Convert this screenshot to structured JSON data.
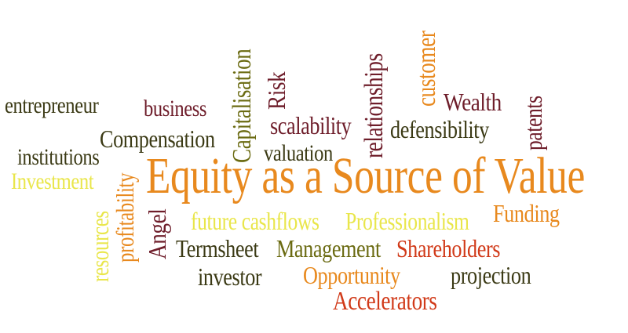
{
  "word_cloud": {
    "words": [
      {
        "text": "Equity as a Source of Value",
        "color": "#e8891e"
      },
      {
        "text": "entrepreneur",
        "color": "#3b3a15"
      },
      {
        "text": "business",
        "color": "#6e1d2a"
      },
      {
        "text": "Compensation",
        "color": "#3b3a15"
      },
      {
        "text": "institutions",
        "color": "#3b3a15"
      },
      {
        "text": "Investment",
        "color": "#e9e64a"
      },
      {
        "text": "Capitalisation",
        "color": "#6b6b12"
      },
      {
        "text": "Risk",
        "color": "#6e1d2a"
      },
      {
        "text": "scalability",
        "color": "#6e1d2a"
      },
      {
        "text": "valuation",
        "color": "#3b3a15"
      },
      {
        "text": "relationships",
        "color": "#6e1d2a"
      },
      {
        "text": "customer",
        "color": "#e8891e"
      },
      {
        "text": "defensibility",
        "color": "#3b3a15"
      },
      {
        "text": "Wealth",
        "color": "#6e1d2a"
      },
      {
        "text": "patents",
        "color": "#6e1d2a"
      },
      {
        "text": "resources",
        "color": "#e9e64a"
      },
      {
        "text": "profitability",
        "color": "#e8891e"
      },
      {
        "text": "Angel",
        "color": "#6e1d2a"
      },
      {
        "text": "future cashflows",
        "color": "#e9e64a"
      },
      {
        "text": "Professionalism",
        "color": "#e9e64a"
      },
      {
        "text": "Funding",
        "color": "#e8891e"
      },
      {
        "text": "Termsheet",
        "color": "#3b3a15"
      },
      {
        "text": "Management",
        "color": "#6b6b12"
      },
      {
        "text": "Shareholders",
        "color": "#d13a19"
      },
      {
        "text": "investor",
        "color": "#3b3a15"
      },
      {
        "text": "Opportunity",
        "color": "#e8891e"
      },
      {
        "text": "projection",
        "color": "#3b3a15"
      },
      {
        "text": "Accelerators",
        "color": "#d13a19"
      }
    ]
  }
}
